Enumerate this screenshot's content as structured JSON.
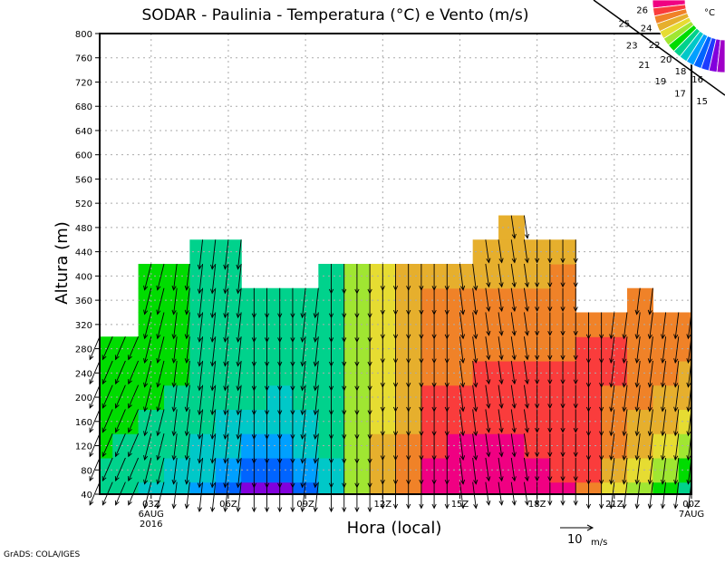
{
  "chart_data": {
    "type": "heatmap",
    "title": "SODAR - Paulinia - Temperatura (°C) e Vento (m/s)",
    "xlabel": "Hora (local)",
    "ylabel": "Altura (m)",
    "credit": "GrADS: COLA/IGES",
    "xlim": [
      1,
      24
    ],
    "ylim": [
      40,
      800
    ],
    "grid": true,
    "y_ticks": [
      40,
      80,
      120,
      160,
      200,
      240,
      280,
      320,
      360,
      400,
      440,
      480,
      520,
      560,
      600,
      640,
      680,
      720,
      760,
      800
    ],
    "x_ticks": [
      {
        "hour": 3,
        "label": "03Z",
        "sub1": "6AUG",
        "sub2": "2016"
      },
      {
        "hour": 6,
        "label": "06Z"
      },
      {
        "hour": 9,
        "label": "09Z"
      },
      {
        "hour": 12,
        "label": "12Z"
      },
      {
        "hour": 15,
        "label": "15Z"
      },
      {
        "hour": 18,
        "label": "18Z"
      },
      {
        "hour": 21,
        "label": "21Z"
      },
      {
        "hour": 24,
        "label": "00Z",
        "sub1": "7AUG"
      }
    ],
    "heights": [
      40,
      80,
      120,
      160,
      200,
      240,
      280,
      320,
      360,
      400,
      440,
      480
    ],
    "hours": [
      1,
      2,
      3,
      4,
      5,
      6,
      7,
      8,
      9,
      10,
      11,
      12,
      13,
      14,
      15,
      16,
      17,
      18,
      19,
      20,
      21,
      22,
      23,
      24
    ],
    "temperature": [
      [
        20.5,
        20.8,
        21.2,
        21.5,
        21.6,
        21.7,
        21.8
      ],
      [
        20.3,
        20.5,
        20.8,
        21.0,
        21.2,
        21.4,
        21.5
      ],
      [
        19.8,
        20.2,
        20.5,
        20.7,
        21.0,
        21.2,
        21.4,
        21.5,
        21.6,
        21.7
      ],
      [
        19.3,
        19.8,
        20.2,
        20.5,
        20.7,
        21.2,
        21.5,
        21.5,
        21.6,
        21.7
      ],
      [
        18.5,
        19.2,
        19.8,
        20.3,
        20.6,
        20.8,
        20.9,
        20.9,
        20.8,
        20.8,
        20.7
      ],
      [
        17.0,
        18.0,
        19.0,
        19.7,
        20.3,
        20.6,
        20.8,
        20.8,
        20.7,
        20.6,
        20.5
      ],
      [
        15.5,
        17.0,
        18.5,
        19.5,
        20.0,
        20.5,
        20.7,
        20.6,
        20.5
      ],
      [
        15.8,
        17.2,
        18.6,
        19.4,
        19.9,
        20.4,
        20.6,
        20.5,
        20.5
      ],
      [
        17.0,
        18.0,
        19.0,
        19.6,
        20.1,
        20.5,
        20.6,
        20.5,
        20.4
      ],
      [
        19.5,
        19.8,
        20.2,
        20.5,
        20.7,
        20.8,
        20.8,
        20.8,
        20.7,
        20.7
      ],
      [
        22.0,
        22.2,
        22.3,
        22.4,
        22.4,
        22.5,
        22.5,
        22.5,
        22.5,
        22.5
      ],
      [
        24.5,
        24.3,
        24.0,
        23.8,
        23.7,
        23.5,
        23.4,
        23.3,
        23.3,
        23.2
      ],
      [
        25.5,
        25.3,
        25.0,
        24.8,
        24.6,
        24.4,
        24.3,
        24.2,
        24.1,
        24.0
      ],
      [
        27.5,
        27.2,
        26.8,
        26.4,
        26.0,
        25.6,
        25.4,
        25.2,
        25.0,
        24.8
      ],
      [
        27.5,
        27.3,
        27.0,
        26.6,
        26.2,
        25.8,
        25.5,
        25.2,
        25.0,
        24.8
      ],
      [
        27.6,
        27.4,
        27.1,
        26.7,
        26.3,
        26.0,
        25.6,
        25.3,
        25.1,
        24.9,
        24.7
      ],
      [
        27.5,
        27.3,
        27.0,
        26.7,
        26.3,
        26.0,
        25.6,
        25.3,
        25.0,
        24.8,
        24.6,
        24.5
      ],
      [
        27.3,
        27.1,
        26.8,
        26.5,
        26.2,
        26.0,
        25.7,
        25.3,
        25.1,
        24.9,
        24.8
      ],
      [
        27.0,
        26.8,
        26.5,
        26.2,
        26.0,
        26.0,
        25.8,
        25.4,
        25.2,
        25.0,
        24.9
      ],
      [
        25.5,
        26.0,
        26.2,
        26.2,
        26.2,
        26.1,
        26.0,
        25.7
      ],
      [
        23.8,
        24.5,
        25.0,
        25.5,
        25.8,
        26.0,
        26.0,
        25.6
      ],
      [
        22.6,
        23.3,
        24.0,
        24.7,
        25.2,
        25.5,
        25.5,
        25.3,
        25.1
      ],
      [
        21.5,
        22.5,
        23.2,
        24.0,
        24.6,
        25.0,
        25.2,
        25.1
      ],
      [
        20.8,
        21.8,
        22.6,
        23.3,
        24.0,
        24.6,
        25.0,
        25.0
      ]
    ],
    "wind_uv": [
      [
        -3,
        -7
      ],
      [
        -3,
        -7
      ],
      [
        -2,
        -8
      ],
      [
        -1,
        -8
      ],
      [
        -1,
        -9
      ],
      [
        -1,
        -9
      ],
      [
        0,
        -9
      ],
      [
        0,
        -9
      ],
      [
        -1,
        -9
      ],
      [
        0,
        -9
      ],
      [
        0,
        -9
      ],
      [
        0,
        -8
      ],
      [
        0,
        -8
      ],
      [
        0,
        -8
      ],
      [
        1,
        -8
      ],
      [
        1,
        -7
      ],
      [
        1,
        -7
      ],
      [
        0,
        -7
      ],
      [
        0,
        -7
      ],
      [
        0,
        -8
      ],
      [
        -1,
        -8
      ],
      [
        -1,
        -8
      ],
      [
        -1,
        -8
      ],
      [
        -1,
        -8
      ]
    ],
    "colorbar": {
      "unit": "°C",
      "labels": [
        "26",
        "25",
        "24",
        "23",
        "22",
        "21",
        "20",
        "19",
        "18",
        "17",
        "16",
        "15"
      ],
      "levels": [
        15,
        16,
        17,
        18,
        19,
        20,
        21,
        22,
        23,
        24,
        25,
        26,
        27
      ],
      "colors": [
        "#a000c8",
        "#8200dc",
        "#1e3cff",
        "#0064ff",
        "#00a0ff",
        "#00c8c8",
        "#00d28c",
        "#00dc00",
        "#a0e632",
        "#e6dc32",
        "#e6af2d",
        "#f08228",
        "#fa3c3c",
        "#f00082"
      ]
    },
    "reference_vector": {
      "value": "10",
      "unit": "m/s",
      "speed": 10
    }
  }
}
